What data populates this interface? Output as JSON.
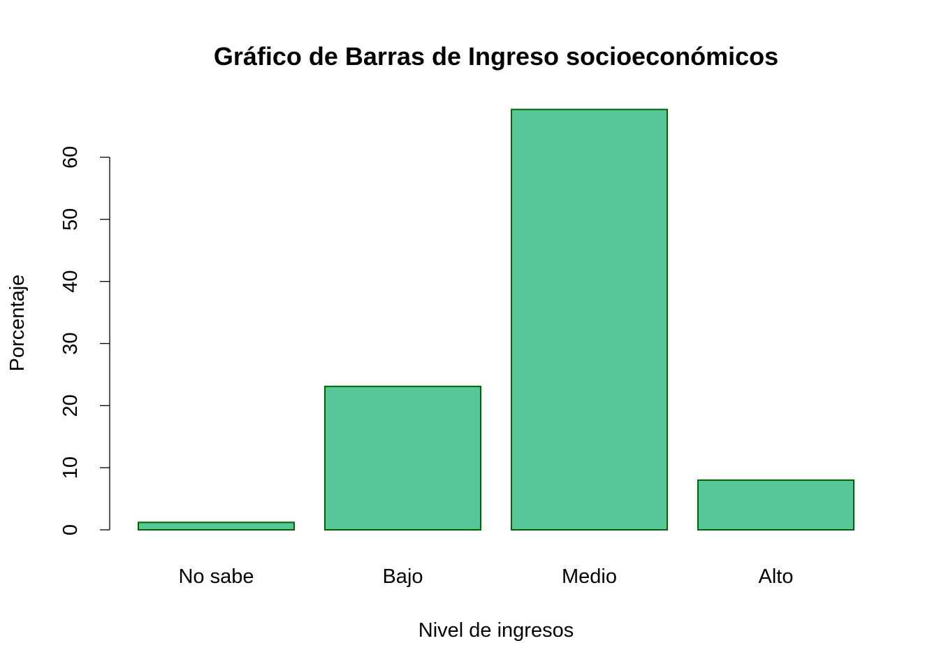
{
  "chart_data": {
    "type": "bar",
    "title": "Gráfico de Barras de Ingreso socioeconómicos",
    "xlabel": "Nivel de ingresos",
    "ylabel": "Porcentaje",
    "categories": [
      "No sabe",
      "Bajo",
      "Medio",
      "Alto"
    ],
    "values": [
      1.2,
      23.1,
      67.7,
      8.0
    ],
    "yticks": [
      0,
      10,
      20,
      30,
      40,
      50,
      60
    ],
    "ylim": [
      0,
      67.7
    ],
    "grid": false,
    "legend": "none",
    "bar_fill": "#57C699",
    "bar_stroke": "#006400"
  }
}
